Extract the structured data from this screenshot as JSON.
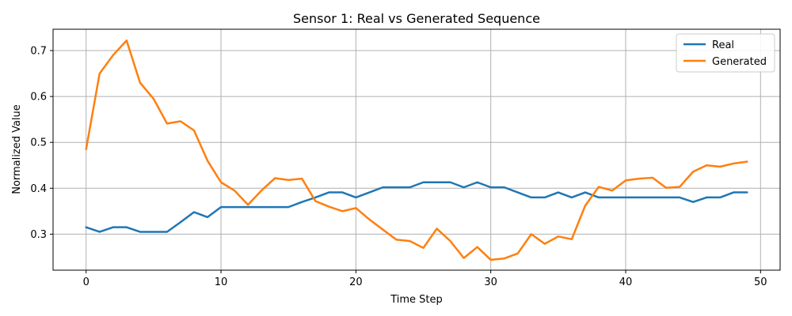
{
  "chart_data": {
    "type": "line",
    "title": "Sensor 1: Real vs Generated Sequence",
    "xlabel": "Time Step",
    "ylabel": "Normalized Value",
    "xlim": [
      -2.45,
      51.45
    ],
    "ylim": [
      0.2215,
      0.7465
    ],
    "xticks": [
      0,
      10,
      20,
      30,
      40,
      50
    ],
    "yticks": [
      0.3,
      0.4,
      0.5,
      0.6,
      0.7
    ],
    "xtick_labels": [
      "0",
      "10",
      "20",
      "30",
      "40",
      "50"
    ],
    "ytick_labels": [
      "0.3",
      "0.4",
      "0.5",
      "0.6",
      "0.7"
    ],
    "grid": true,
    "legend_position": "top-right",
    "x": [
      0,
      1,
      2,
      3,
      4,
      5,
      6,
      7,
      8,
      9,
      10,
      11,
      12,
      13,
      14,
      15,
      16,
      17,
      18,
      19,
      20,
      21,
      22,
      23,
      24,
      25,
      26,
      27,
      28,
      29,
      30,
      31,
      32,
      33,
      34,
      35,
      36,
      37,
      38,
      39,
      40,
      41,
      42,
      43,
      44,
      45,
      46,
      47,
      48,
      49
    ],
    "series": [
      {
        "name": "Real",
        "color": "#1f77b4",
        "values": [
          0.315,
          0.305,
          0.315,
          0.315,
          0.305,
          0.305,
          0.305,
          0.326,
          0.348,
          0.337,
          0.359,
          0.359,
          0.359,
          0.359,
          0.359,
          0.359,
          0.37,
          0.38,
          0.391,
          0.391,
          0.38,
          0.391,
          0.402,
          0.402,
          0.402,
          0.413,
          0.413,
          0.413,
          0.402,
          0.413,
          0.402,
          0.402,
          0.391,
          0.38,
          0.38,
          0.391,
          0.38,
          0.391,
          0.38,
          0.38,
          0.38,
          0.38,
          0.38,
          0.38,
          0.38,
          0.37,
          0.38,
          0.38,
          0.391,
          0.391
        ]
      },
      {
        "name": "Generated",
        "color": "#ff7f0e",
        "values": [
          0.485,
          0.65,
          0.69,
          0.722,
          0.63,
          0.595,
          0.541,
          0.546,
          0.526,
          0.46,
          0.413,
          0.395,
          0.364,
          0.395,
          0.422,
          0.418,
          0.421,
          0.372,
          0.36,
          0.35,
          0.357,
          0.332,
          0.31,
          0.288,
          0.285,
          0.27,
          0.312,
          0.285,
          0.248,
          0.272,
          0.244,
          0.247,
          0.258,
          0.3,
          0.279,
          0.295,
          0.289,
          0.362,
          0.403,
          0.395,
          0.417,
          0.421,
          0.423,
          0.401,
          0.403,
          0.436,
          0.45,
          0.447,
          0.454,
          0.458
        ]
      }
    ]
  }
}
